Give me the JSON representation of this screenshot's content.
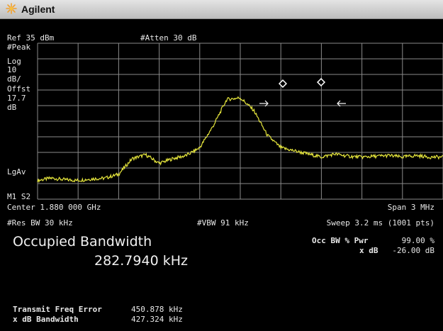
{
  "window": {
    "brand": "Agilent"
  },
  "header": {
    "ref_level": "Ref 35 dBm",
    "attenuation": "#Atten 30 dB"
  },
  "left_annotations": {
    "detector": "#Peak",
    "scale_type": "Log",
    "scale_value": "10",
    "scale_unit": "dB/",
    "offset_label": "Offst",
    "offset_value": "17.7",
    "offset_unit": "dB",
    "averaging": "LgAv",
    "markers": "M1 S2"
  },
  "footer": {
    "center": "Center 1.880 000 GHz",
    "span": "Span 3 MHz",
    "res_bw": "#Res BW 30 kHz",
    "vbw": "#VBW 91 kHz",
    "sweep": "Sweep 3.2 ms (1001 pts)"
  },
  "results": {
    "title": "Occupied Bandwidth",
    "value": "282.7940 kHz",
    "occ_bw_label": "Occ BW % Pwr",
    "occ_bw_value": "99.00 %",
    "xdb_label": "x dB",
    "xdb_value": "-26.00 dB",
    "tx_freq_error_label": "Transmit Freq Error",
    "tx_freq_error_value": "450.878 kHz",
    "xdb_bw_label": "x dB Bandwidth",
    "xdb_bw_value": "427.324 kHz"
  },
  "colors": {
    "trace": "#e6e63c",
    "grid": "#8a8a8a",
    "background": "#000000"
  },
  "chart_data": {
    "type": "line",
    "x": [
      -1.5,
      -1.4,
      -1.3,
      -1.2,
      -1.1,
      -1.0,
      -0.9,
      -0.8,
      -0.7,
      -0.6,
      -0.5,
      -0.4,
      -0.3,
      -0.2,
      -0.1,
      0.0,
      0.1,
      0.2,
      0.3,
      0.4,
      0.5,
      0.6,
      0.7,
      0.8,
      0.9,
      1.0,
      1.1,
      1.2,
      1.3,
      1.4,
      1.5
    ],
    "series": [
      {
        "values": [
          -53,
          -51.5,
          -52.5,
          -53,
          -52,
          -51.5,
          -49,
          -39,
          -36.5,
          -42,
          -39,
          -37,
          -32,
          -18,
          -1,
          0,
          -8,
          -24,
          -32,
          -34,
          -36,
          -38,
          -36,
          -37.5,
          -38,
          -37.5,
          -37,
          -38,
          -37,
          -38,
          -38
        ]
      }
    ],
    "xlim": [
      -1.5,
      1.5
    ],
    "ylim": [
      -65,
      35
    ],
    "grid": true
  }
}
